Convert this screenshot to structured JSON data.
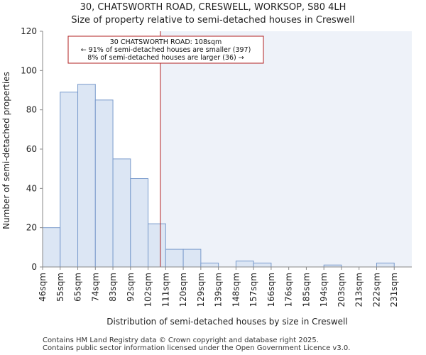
{
  "header": {
    "title_line1": "30, CHATSWORTH ROAD, CRESWELL, WORKSOP, S80 4LH",
    "title_line2": "Size of property relative to semi-detached houses in Creswell"
  },
  "footer": {
    "line1": "Contains HM Land Registry data © Crown copyright and database right 2025.",
    "line2": "Contains public sector information licensed under the Open Government Licence v3.0."
  },
  "chart_data": {
    "type": "bar",
    "title": "Size of property relative to semi-detached houses in Creswell",
    "xlabel": "Distribution of semi-detached houses by size in Creswell",
    "ylabel": "Number of semi-detached properties",
    "ylim": [
      0,
      120
    ],
    "yticks": [
      0,
      20,
      40,
      60,
      80,
      100,
      120
    ],
    "grid": false,
    "categories": [
      "46sqm",
      "55sqm",
      "65sqm",
      "74sqm",
      "83sqm",
      "92sqm",
      "102sqm",
      "111sqm",
      "120sqm",
      "129sqm",
      "139sqm",
      "148sqm",
      "157sqm",
      "166sqm",
      "176sqm",
      "185sqm",
      "194sqm",
      "203sqm",
      "213sqm",
      "222sqm",
      "231sqm"
    ],
    "values": [
      20,
      89,
      93,
      85,
      55,
      45,
      22,
      9,
      9,
      2,
      0,
      3,
      2,
      0,
      0,
      0,
      1,
      0,
      0,
      2,
      0
    ],
    "property_marker": {
      "value_sqm": 108,
      "label": "30 CHATSWORTH ROAD",
      "position_bin": 6.7
    },
    "annotation": {
      "line1": "30 CHATSWORTH ROAD: 108sqm",
      "line2": "← 91% of semi-detached houses are smaller (397)",
      "line3": "8% of semi-detached houses are larger (36) →"
    },
    "colors": {
      "bar_fill": "#dce6f4",
      "bar_stroke": "#7a9bcc",
      "marker_line": "#b22222",
      "right_shade": "#eef2f9",
      "annotation_border": "#b22222"
    }
  }
}
